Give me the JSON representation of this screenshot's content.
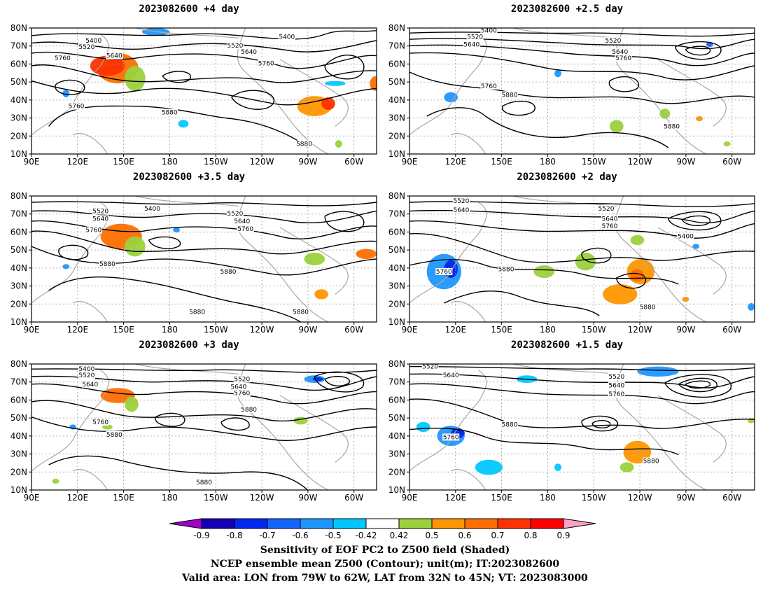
{
  "lat_labels": [
    "80N",
    "70N",
    "60N",
    "50N",
    "40N",
    "30N",
    "20N",
    "10N"
  ],
  "lon_labels": [
    "90E",
    "120E",
    "150E",
    "180",
    "150W",
    "120W",
    "90W",
    "60W"
  ],
  "panels": [
    {
      "title": "2023082600  +4 day",
      "contour_labels": [
        "5400",
        "5520",
        "5640",
        "5760",
        "5400",
        "5520",
        "5640",
        "5760",
        "5760",
        "5880",
        "5880"
      ]
    },
    {
      "title": "2023082600  +2.5 day",
      "contour_labels": [
        "5400",
        "5520",
        "5640",
        "5520",
        "5640",
        "5760",
        "5760",
        "5880",
        "5880"
      ]
    },
    {
      "title": "2023082600  +3.5 day",
      "contour_labels": [
        "5400",
        "5520",
        "5640",
        "5760",
        "5520",
        "5640",
        "5760",
        "5880",
        "5880",
        "5880",
        "5880"
      ]
    },
    {
      "title": "2023082600  +2 day",
      "contour_labels": [
        "5520",
        "5640",
        "5520",
        "5640",
        "5760",
        "5400",
        "5880",
        "5760",
        "5880"
      ]
    },
    {
      "title": "2023082600  +3 day",
      "contour_labels": [
        "5400",
        "5520",
        "5640",
        "5520",
        "5640",
        "5760",
        "5880",
        "5760",
        "5880",
        "5880"
      ]
    },
    {
      "title": "2023082600  +1.5 day",
      "contour_labels": [
        "5520",
        "5640",
        "5520",
        "5640",
        "5760",
        "5880",
        "5760",
        "5880"
      ]
    }
  ],
  "colorbar": {
    "ticks": [
      "-0.9",
      "-0.8",
      "-0.7",
      "-0.6",
      "-0.5",
      "-0.42",
      "0.42",
      "0.5",
      "0.6",
      "0.7",
      "0.8",
      "0.9"
    ],
    "colors": [
      "#a000c8",
      "#1400b4",
      "#0028f0",
      "#1464ff",
      "#1e96ff",
      "#00c8ff",
      "#ffffff",
      "#9bd23c",
      "#ff9600",
      "#ff6e00",
      "#ff3200",
      "#ff0000",
      "#ffa0c8"
    ]
  },
  "captions": [
    "Sensitivity of EOF PC2 to Z500 field (Shaded)",
    "NCEP ensemble mean Z500 (Contour); unit(m); IT:2023082600",
    "Valid area: LON from 79W to 62W, LAT from 32N to 45N; VT: 2023083000"
  ]
}
